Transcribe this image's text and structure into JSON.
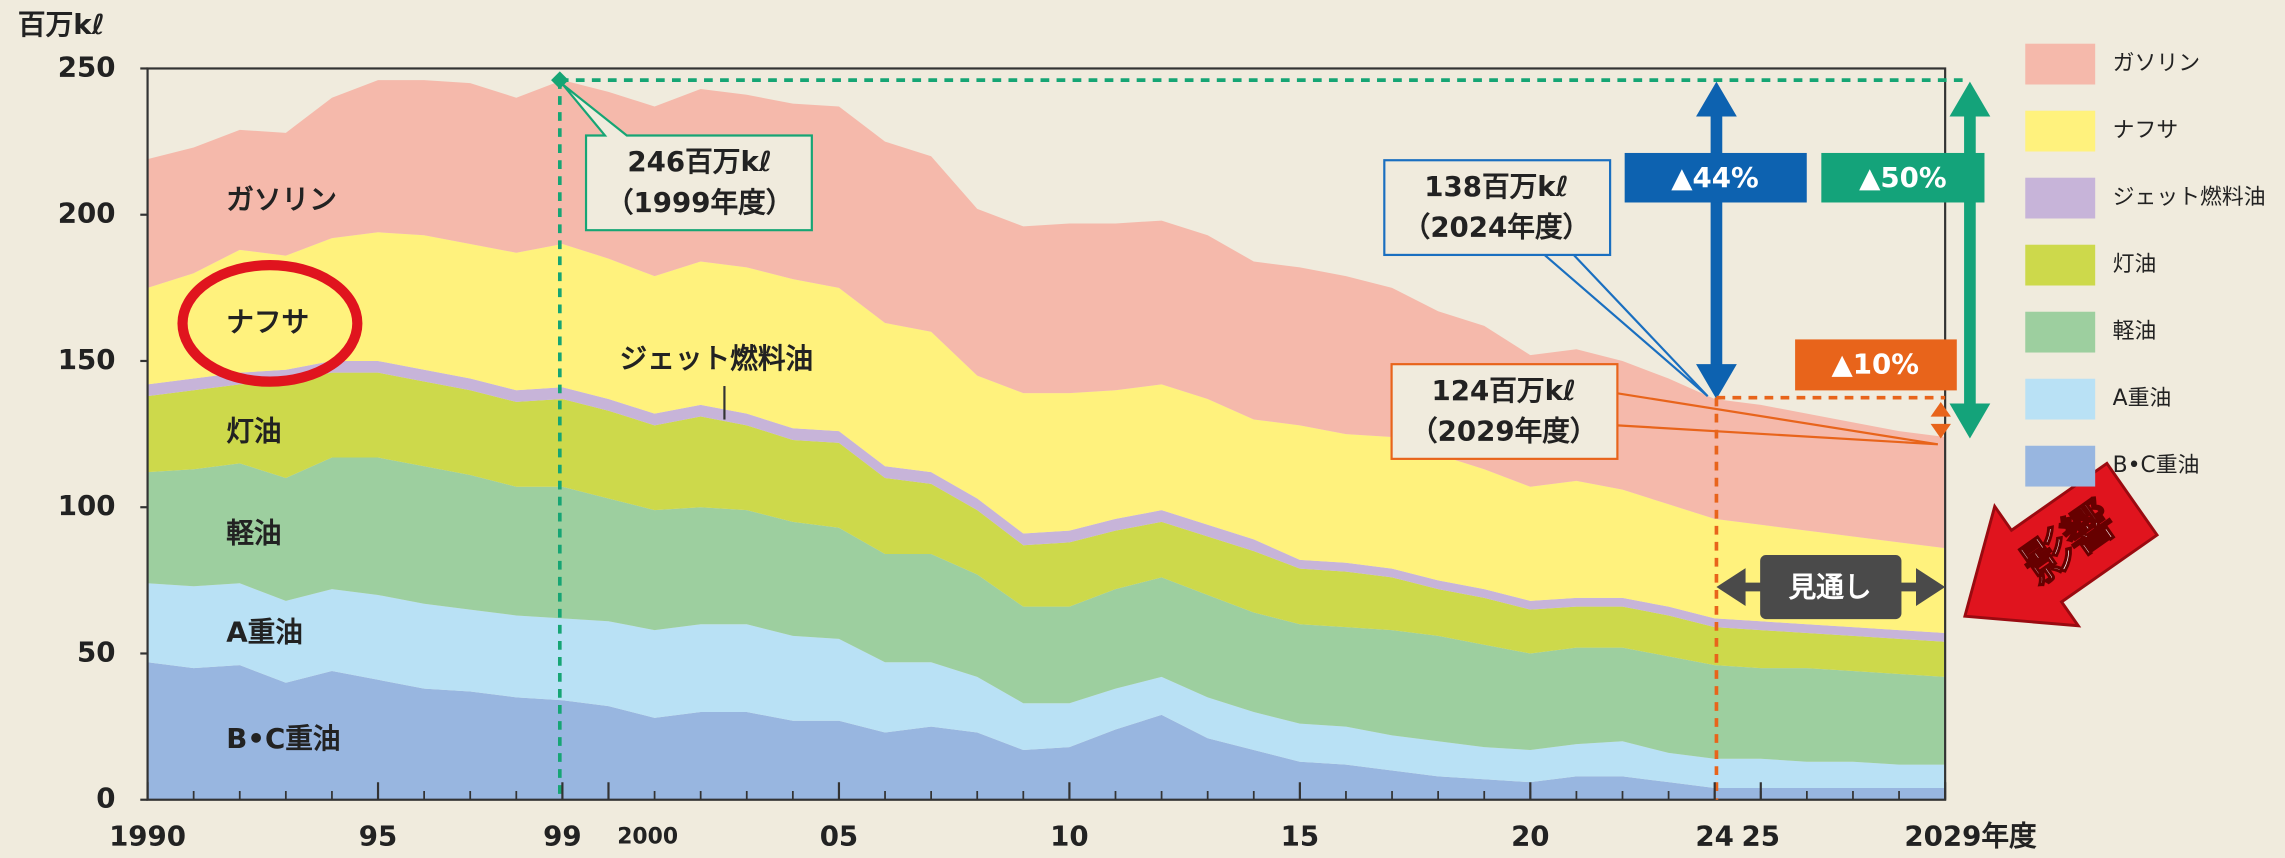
{
  "chart_data": {
    "type": "stacked_area",
    "y_label": "百万kℓ",
    "x": [
      1990,
      1991,
      1992,
      1993,
      1994,
      1995,
      1996,
      1997,
      1998,
      1999,
      2000,
      2001,
      2002,
      2003,
      2004,
      2005,
      2006,
      2007,
      2008,
      2009,
      2010,
      2011,
      2012,
      2013,
      2014,
      2015,
      2016,
      2017,
      2018,
      2019,
      2020,
      2021,
      2022,
      2023,
      2024,
      2025,
      2026,
      2027,
      2028,
      2029
    ],
    "xlim": [
      1990,
      2029
    ],
    "xticks": [
      {
        "value": 1990,
        "label": "1990"
      },
      {
        "value": 1995,
        "label": "95"
      },
      {
        "value": 1999,
        "label": "99"
      },
      {
        "value": 2000,
        "label": "2000"
      },
      {
        "value": 2005,
        "label": "05"
      },
      {
        "value": 2010,
        "label": "10"
      },
      {
        "value": 2015,
        "label": "15"
      },
      {
        "value": 2020,
        "label": "20"
      },
      {
        "value": 2024,
        "label": "24"
      },
      {
        "value": 2025,
        "label": "25"
      },
      {
        "value": 2029,
        "label": "2029年度"
      }
    ],
    "ylim": [
      0,
      250
    ],
    "yticks": [
      0,
      50,
      100,
      150,
      200,
      250
    ],
    "grid": false,
    "legend": "right",
    "series": [
      {
        "name": "B•C重油",
        "color": "#98b6e0",
        "values": [
          47,
          45,
          46,
          40,
          44,
          41,
          38,
          37,
          35,
          34,
          32,
          28,
          30,
          30,
          27,
          27,
          23,
          25,
          23,
          17,
          18,
          24,
          29,
          21,
          17,
          13,
          12,
          10,
          8,
          7,
          6,
          8,
          8,
          6,
          4,
          4,
          4,
          4,
          4,
          4
        ]
      },
      {
        "name": "A重油",
        "color": "#b9e1f5",
        "values": [
          27,
          28,
          28,
          28,
          28,
          29,
          29,
          28,
          28,
          28,
          29,
          30,
          30,
          30,
          29,
          28,
          24,
          22,
          19,
          16,
          15,
          14,
          13,
          14,
          13,
          13,
          13,
          12,
          12,
          11,
          11,
          11,
          12,
          10,
          10,
          10,
          9,
          9,
          8,
          8
        ]
      },
      {
        "name": "軽油",
        "color": "#9dcf9f",
        "values": [
          38,
          40,
          41,
          42,
          45,
          47,
          47,
          46,
          44,
          45,
          42,
          41,
          40,
          39,
          39,
          38,
          37,
          37,
          35,
          33,
          33,
          34,
          34,
          35,
          34,
          34,
          34,
          36,
          36,
          35,
          33,
          33,
          32,
          33,
          32,
          31,
          32,
          31,
          31,
          30
        ]
      },
      {
        "name": "灯油",
        "color": "#cdd94b",
        "values": [
          26,
          27,
          27,
          33,
          29,
          29,
          29,
          29,
          29,
          30,
          30,
          29,
          31,
          29,
          28,
          29,
          26,
          24,
          22,
          21,
          22,
          20,
          19,
          20,
          21,
          19,
          19,
          18,
          16,
          16,
          15,
          14,
          14,
          14,
          13,
          13,
          12,
          12,
          12,
          12
        ]
      },
      {
        "name": "ジェット燃料油",
        "color": "#c7b4d9",
        "values": [
          4,
          4,
          4,
          4,
          4,
          4,
          4,
          4,
          4,
          4,
          4,
          4,
          4,
          4,
          4,
          4,
          4,
          4,
          4,
          4,
          4,
          4,
          4,
          4,
          4,
          3,
          3,
          3,
          3,
          3,
          3,
          3,
          3,
          3,
          3,
          3,
          3,
          3,
          3,
          3
        ]
      },
      {
        "name": "ナフサ",
        "color": "#fff27d",
        "values": [
          33,
          36,
          42,
          39,
          42,
          44,
          46,
          46,
          47,
          49,
          48,
          47,
          49,
          50,
          51,
          49,
          49,
          48,
          42,
          48,
          47,
          44,
          43,
          43,
          41,
          46,
          44,
          45,
          43,
          41,
          39,
          40,
          37,
          35,
          34,
          33,
          32,
          31,
          30,
          29
        ]
      },
      {
        "name": "ガソリン",
        "color": "#f5b9ab",
        "values": [
          44,
          43,
          41,
          42,
          48,
          52,
          53,
          55,
          53,
          56,
          57,
          58,
          59,
          59,
          60,
          62,
          62,
          60,
          57,
          57,
          58,
          57,
          56,
          56,
          54,
          54,
          54,
          51,
          49,
          49,
          45,
          45,
          44,
          43,
          41,
          41,
          40,
          39,
          38,
          38
        ]
      }
    ],
    "annotations": {
      "peak": [
        "246百万kℓ",
        "（1999年度）"
      ],
      "y2024": [
        "138百万kℓ",
        "（2024年度）"
      ],
      "y2029": [
        "124百万kℓ",
        "（2029年度）"
      ],
      "drop_2024": "▲44%",
      "drop_2029": "▲50%",
      "drop_between": "▲10%",
      "forecast": "見通し",
      "impact": "影響"
    }
  }
}
